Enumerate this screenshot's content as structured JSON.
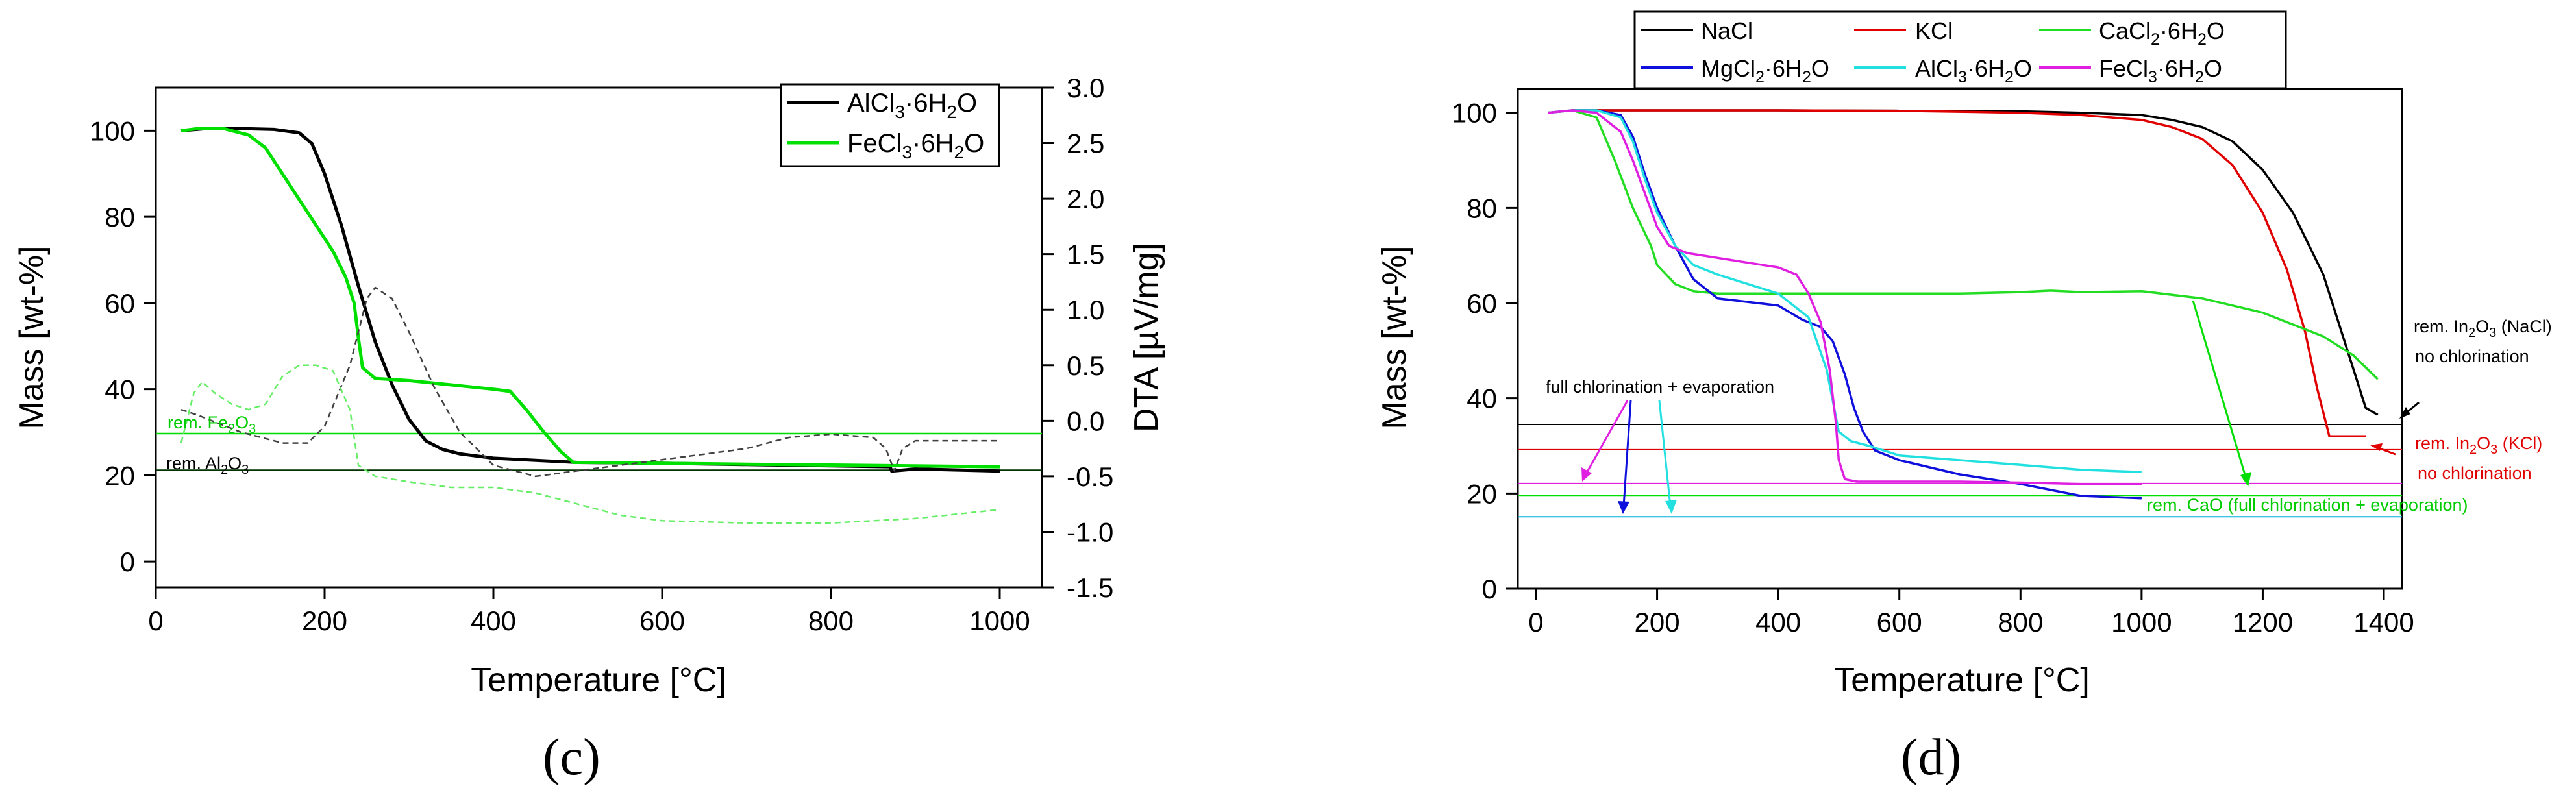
{
  "chart_data": [
    {
      "type": "line",
      "panel_label": "(c)",
      "xlabel": "Temperature [°C]",
      "ylabel": "Mass [wt-%]",
      "y2label": "DTA [µV/mg]",
      "xlim": [
        0,
        1050
      ],
      "ylim": [
        -6,
        110
      ],
      "y2lim": [
        -1.5,
        3.0
      ],
      "x_ticks": [
        "0",
        "200",
        "400",
        "600",
        "800",
        "1000"
      ],
      "y_ticks": [
        "0",
        "20",
        "40",
        "60",
        "80",
        "100"
      ],
      "y2_ticks": [
        "-1.5",
        "-1.0",
        "-0.5",
        "0.0",
        "0.5",
        "1.0",
        "1.5",
        "2.0",
        "2.5",
        "3.0"
      ],
      "legend_position": "top-right",
      "series": [
        {
          "name": "AlCl3·6H2O",
          "axis": "left",
          "color": "#000000",
          "style": "solid",
          "x": [
            30,
            60,
            100,
            140,
            170,
            185,
            200,
            220,
            240,
            260,
            280,
            300,
            320,
            340,
            360,
            400,
            450,
            500,
            600,
            700,
            800,
            870,
            872,
            900,
            1000
          ],
          "y": [
            100,
            100.5,
            100.5,
            100.3,
            99.5,
            97,
            90,
            78,
            64,
            51,
            41,
            33,
            28,
            26,
            25,
            24,
            23.5,
            23,
            22.8,
            22.5,
            22.2,
            22,
            21,
            21.5,
            21
          ]
        },
        {
          "name": "FeCl3·6H2O",
          "axis": "left",
          "color": "#00e000",
          "style": "solid",
          "x": [
            30,
            50,
            80,
            110,
            130,
            150,
            170,
            190,
            210,
            225,
            235,
            240,
            245,
            260,
            300,
            350,
            400,
            420,
            440,
            460,
            480,
            495,
            520,
            600,
            700,
            800,
            900,
            1000
          ],
          "y": [
            100,
            100.5,
            100.5,
            99,
            96,
            90,
            84,
            78,
            72,
            66,
            60,
            52,
            45,
            42.5,
            42,
            41,
            40,
            39.5,
            35,
            30,
            25.5,
            23,
            23,
            22.8,
            22.6,
            22.4,
            22.2,
            22
          ]
        },
        {
          "name": "",
          "axis": "right",
          "color": "#404040",
          "style": "dashed",
          "x": [
            30,
            50,
            100,
            150,
            180,
            200,
            230,
            250,
            260,
            280,
            300,
            330,
            360,
            400,
            450,
            500,
            550,
            600,
            650,
            700,
            750,
            800,
            850,
            865,
            875,
            885,
            900,
            1000
          ],
          "y": [
            0.1,
            0.05,
            -0.1,
            -0.2,
            -0.2,
            -0.05,
            0.5,
            1.1,
            1.2,
            1.1,
            0.8,
            0.3,
            -0.1,
            -0.4,
            -0.5,
            -0.45,
            -0.4,
            -0.35,
            -0.3,
            -0.25,
            -0.15,
            -0.12,
            -0.15,
            -0.25,
            -0.45,
            -0.25,
            -0.18,
            -0.18
          ]
        },
        {
          "name": "",
          "axis": "right",
          "color": "#66ee66",
          "style": "dashed",
          "x": [
            30,
            45,
            55,
            70,
            90,
            110,
            130,
            150,
            170,
            190,
            210,
            230,
            240,
            260,
            300,
            350,
            400,
            450,
            500,
            550,
            600,
            700,
            800,
            900,
            1000
          ],
          "y": [
            -0.2,
            0.25,
            0.35,
            0.25,
            0.15,
            0.1,
            0.15,
            0.4,
            0.5,
            0.5,
            0.45,
            0.1,
            -0.4,
            -0.5,
            -0.55,
            -0.6,
            -0.6,
            -0.65,
            -0.75,
            -0.85,
            -0.9,
            -0.92,
            -0.92,
            -0.88,
            -0.8
          ]
        }
      ],
      "hlines": [
        {
          "y": 29.7,
          "color": "#00dd00",
          "label": "rem. Fe2O3"
        },
        {
          "y": 21.2,
          "color": "#003300",
          "label": "rem. Al2O3"
        }
      ]
    },
    {
      "type": "line",
      "panel_label": "(d)",
      "xlabel": "Temperature [°C]",
      "ylabel": "Mass [wt-%]",
      "xlim": [
        -30,
        1430
      ],
      "ylim": [
        0,
        105
      ],
      "x_ticks": [
        "0",
        "200",
        "400",
        "600",
        "800",
        "1000",
        "1200",
        "1400"
      ],
      "y_ticks": [
        "0",
        "20",
        "40",
        "60",
        "80",
        "100"
      ],
      "legend_position": "top",
      "series": [
        {
          "name": "NaCl",
          "color": "#000000",
          "x": [
            20,
            60,
            100,
            200,
            400,
            600,
            800,
            900,
            1000,
            1050,
            1100,
            1150,
            1200,
            1250,
            1300,
            1330,
            1350,
            1370,
            1390
          ],
          "y": [
            100,
            100.5,
            100.5,
            100.5,
            100.5,
            100.4,
            100.3,
            100,
            99.5,
            98.5,
            97,
            94,
            88,
            79,
            66,
            54,
            46,
            38,
            36.5
          ]
        },
        {
          "name": "KCl",
          "color": "#e00000",
          "x": [
            20,
            60,
            100,
            200,
            400,
            600,
            800,
            900,
            1000,
            1050,
            1100,
            1150,
            1200,
            1240,
            1270,
            1290,
            1310,
            1370
          ],
          "y": [
            100,
            100.5,
            100.5,
            100.5,
            100.5,
            100.4,
            100,
            99.5,
            98.5,
            97,
            94.5,
            89,
            79,
            67,
            54,
            42,
            32,
            32
          ]
        },
        {
          "name": "CaCl2·6H2O",
          "color": "#22dd22",
          "x": [
            20,
            60,
            100,
            130,
            160,
            190,
            200,
            230,
            260,
            300,
            400,
            600,
            700,
            800,
            850,
            900,
            1000,
            1100,
            1200,
            1300,
            1350,
            1390
          ],
          "y": [
            100,
            100.5,
            99,
            90,
            80,
            72,
            68,
            64,
            62.5,
            62,
            62,
            62,
            62,
            62.3,
            62.6,
            62.3,
            62.5,
            61,
            58,
            53,
            49,
            44
          ]
        },
        {
          "name": "MgCl2·6H2O",
          "color": "#1010dd",
          "x": [
            20,
            60,
            100,
            140,
            160,
            180,
            200,
            230,
            260,
            300,
            400,
            440,
            470,
            490,
            510,
            525,
            540,
            560,
            600,
            700,
            800,
            900,
            1000
          ],
          "y": [
            100,
            100.5,
            100.5,
            99.5,
            95,
            87,
            80,
            72,
            65,
            61,
            59.5,
            56.5,
            55,
            52,
            45,
            38,
            33,
            29,
            27,
            24,
            22,
            19.5,
            19
          ]
        },
        {
          "name": "AlCl3·6H2O",
          "color": "#22e0e0",
          "x": [
            20,
            60,
            100,
            140,
            160,
            180,
            200,
            230,
            260,
            300,
            350,
            400,
            450,
            480,
            500,
            520,
            550,
            600,
            700,
            800,
            900,
            1000
          ],
          "y": [
            100,
            100.5,
            100.5,
            99,
            94,
            86,
            79,
            72,
            68,
            66,
            64,
            62,
            57,
            46,
            33,
            31,
            30,
            28,
            27,
            26,
            25,
            24.5
          ]
        },
        {
          "name": "FeCl3·6H2O",
          "color": "#e020e0",
          "x": [
            20,
            60,
            100,
            140,
            160,
            180,
            200,
            220,
            250,
            300,
            350,
            400,
            430,
            450,
            470,
            485,
            495,
            500,
            510,
            530,
            600,
            700,
            800,
            900,
            1000
          ],
          "y": [
            100,
            100.5,
            100,
            96,
            90,
            83,
            76,
            72,
            70.5,
            69.5,
            68.5,
            67.5,
            66,
            62,
            56,
            46,
            35,
            27,
            23,
            22.5,
            22.5,
            22.5,
            22.3,
            22,
            22
          ]
        }
      ],
      "hlines": [
        {
          "y": 34.5,
          "color": "#000000"
        },
        {
          "y": 29.2,
          "color": "#e00000"
        },
        {
          "y": 22.1,
          "color": "#e020e0"
        },
        {
          "y": 19.6,
          "color": "#00dd00"
        },
        {
          "y": 15.1,
          "color": "#00b0e0"
        }
      ],
      "annotations": {
        "full_chlorination": "full chlorination + evaporation",
        "nacl_line1": "rem. In2O3 (NaCl)",
        "nacl_line2": "no chlorination",
        "kcl_line1": "rem. In2O3 (KCl)",
        "kcl_line2": "no chlorination",
        "cao": "rem. CaO (full chlorination + evaporation)"
      }
    }
  ]
}
